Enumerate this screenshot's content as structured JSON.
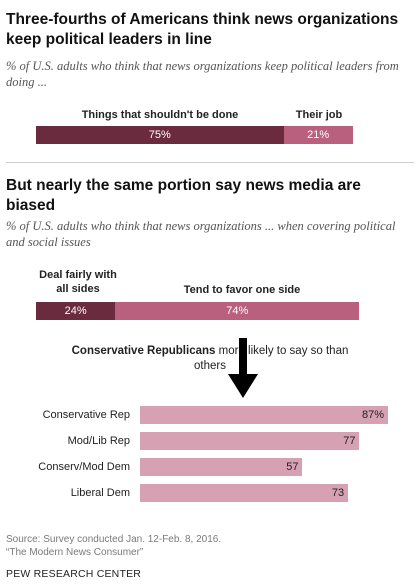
{
  "section1": {
    "title": "Three-fourths of Americans think news organizations keep political leaders in line",
    "subtitle": "% of U.S. adults who think that news organizations keep political leaders from doing ...",
    "legend_left": "Things that shouldn't be done",
    "legend_right": "Their job",
    "value_left": "75%",
    "value_right": "21%"
  },
  "section2": {
    "title": "But nearly the same portion say news media are biased",
    "subtitle": "% of U.S. adults who think that news organizations ... when covering political and social issues",
    "legend_left": "Deal fairly with all sides",
    "legend_right": "Tend to favor one side",
    "value_left": "24%",
    "value_right": "74%"
  },
  "callout": {
    "bold": "Conservative Republicans",
    "rest": " more likely to say so than others"
  },
  "source": {
    "line1": "Source: Survey conducted Jan. 12-Feb. 8, 2016.",
    "line2": "“The Modern News Consumer”"
  },
  "footer": "PEW RESEARCH CENTER",
  "colors": {
    "dark": "#6b2b3f",
    "medium": "#b8607d",
    "light": "#d6a1b2"
  },
  "chart_data": [
    {
      "type": "bar",
      "orientation": "horizontal-stacked",
      "categories": [
        "Things that shouldn't be done",
        "Their job"
      ],
      "values": [
        75,
        21
      ]
    },
    {
      "type": "bar",
      "orientation": "horizontal-stacked",
      "categories": [
        "Deal fairly with all sides",
        "Tend to favor one side"
      ],
      "values": [
        24,
        74
      ]
    },
    {
      "type": "bar",
      "orientation": "horizontal",
      "categories": [
        "Conservative Rep",
        "Mod/Lib Rep",
        "Conserv/Mod Dem",
        "Liberal Dem"
      ],
      "values": [
        87,
        77,
        57,
        73
      ],
      "value_labels": [
        "87%",
        "77",
        "57",
        "73"
      ],
      "xlim": [
        0,
        100
      ]
    }
  ]
}
